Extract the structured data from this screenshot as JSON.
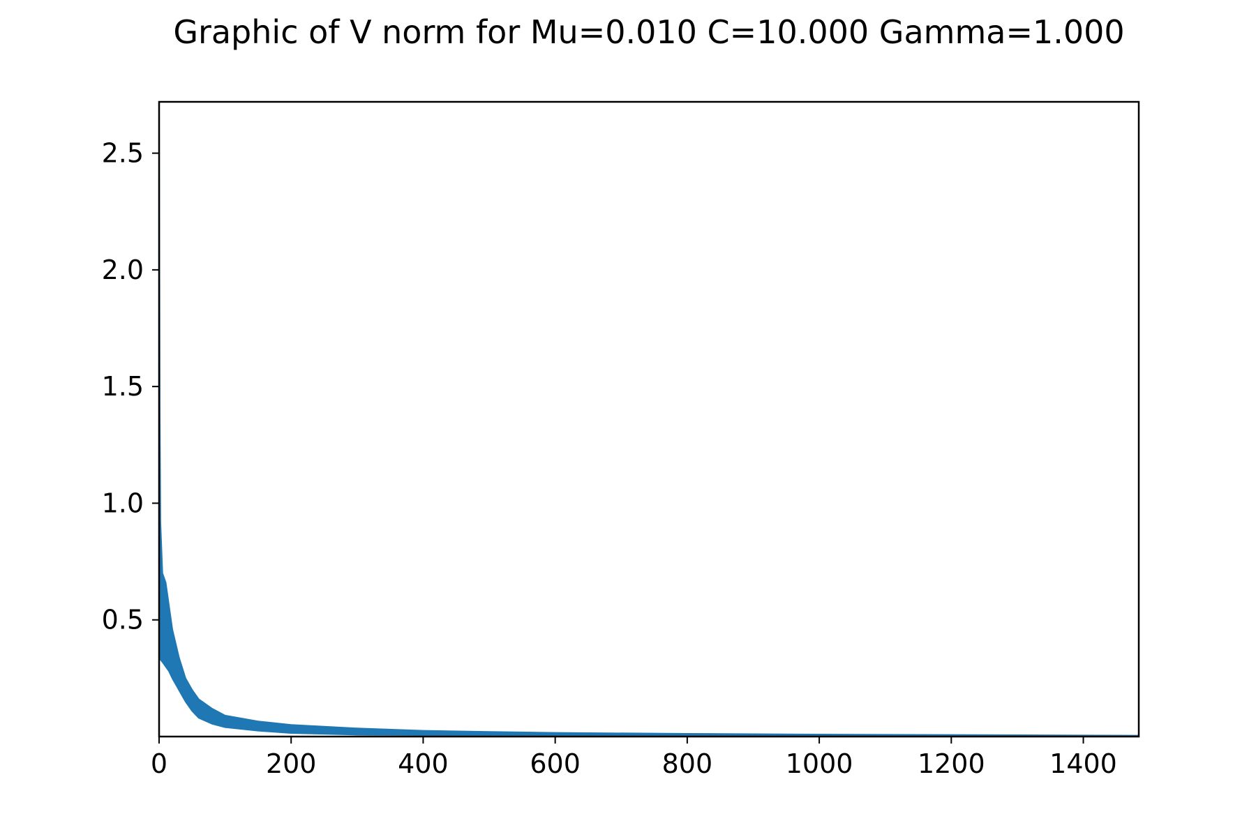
{
  "chart_data": {
    "type": "line",
    "title": "Graphic of V norm for Mu=0.010 C=10.000 Gamma=1.000",
    "xlabel": "",
    "ylabel": "",
    "xlim": [
      0,
      1484
    ],
    "ylim": [
      0,
      2.72
    ],
    "grid": false,
    "legend": "none",
    "x_ticks": [
      {
        "value": 0,
        "label": "0"
      },
      {
        "value": 200,
        "label": "200"
      },
      {
        "value": 400,
        "label": "400"
      },
      {
        "value": 600,
        "label": "600"
      },
      {
        "value": 800,
        "label": "800"
      },
      {
        "value": 1000,
        "label": "1000"
      },
      {
        "value": 1200,
        "label": "1200"
      },
      {
        "value": 1400,
        "label": "1400"
      }
    ],
    "y_ticks": [
      {
        "value": 0.5,
        "label": "0.5"
      },
      {
        "value": 1.0,
        "label": "1.0"
      },
      {
        "value": 1.5,
        "label": "1.5"
      },
      {
        "value": 2.0,
        "label": "2.0"
      },
      {
        "value": 2.5,
        "label": "2.5"
      }
    ],
    "series": [
      {
        "color": "#1f77b4",
        "style": "oscillating band",
        "upper_envelope": {
          "x": [
            0,
            1,
            2,
            5,
            10,
            15,
            20,
            30,
            40,
            50,
            60,
            80,
            100,
            150,
            200,
            300,
            400,
            500,
            600,
            800,
            1000,
            1200,
            1484
          ],
          "y": [
            2.72,
            1.4,
            0.92,
            0.7,
            0.66,
            0.56,
            0.46,
            0.34,
            0.25,
            0.2,
            0.16,
            0.12,
            0.09,
            0.065,
            0.05,
            0.035,
            0.025,
            0.02,
            0.016,
            0.012,
            0.009,
            0.007,
            0.004
          ]
        },
        "lower_envelope": {
          "x": [
            0,
            1,
            2,
            5,
            10,
            15,
            20,
            30,
            40,
            50,
            60,
            80,
            100,
            150,
            200,
            300,
            400,
            500,
            600,
            800,
            1000,
            1200,
            1484
          ],
          "y": [
            0.4,
            0.35,
            0.33,
            0.32,
            0.3,
            0.28,
            0.25,
            0.2,
            0.15,
            0.11,
            0.08,
            0.055,
            0.04,
            0.025,
            0.015,
            0.008,
            0.006,
            0.005,
            0.004,
            0.003,
            0.002,
            0.002,
            0.001
          ]
        }
      }
    ]
  }
}
